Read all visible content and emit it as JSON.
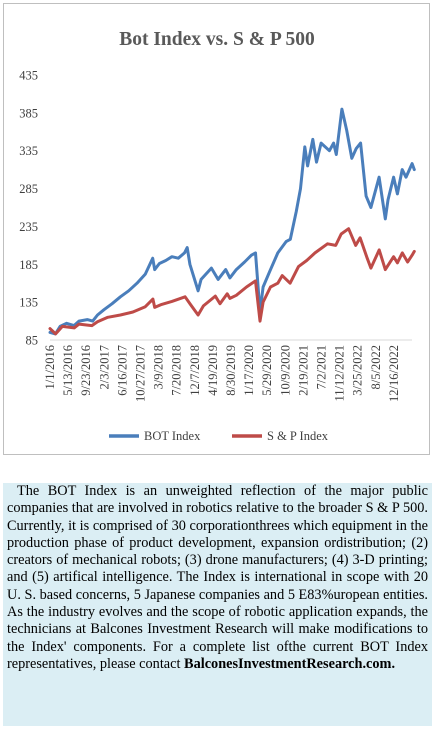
{
  "chart_data": {
    "type": "line",
    "title": "Bot Index vs. S & P 500",
    "xlabel": "",
    "ylabel": "",
    "ylim": [
      85,
      435
    ],
    "yticks": [
      85,
      135,
      185,
      235,
      285,
      335,
      385,
      435
    ],
    "grid": false,
    "legend_position": "bottom",
    "x_tick_labels": [
      "1/1/2016",
      "5/13/2016",
      "9/23/2016",
      "2/3/2017",
      "6/16/2017",
      "10/27/2017",
      "3/9/2018",
      "7/20/2018",
      "12/7/2018",
      "4/19/2019",
      "8/30/2019",
      "1/17/2020",
      "5/29/2020",
      "10/9/2020",
      "2/19/2021",
      "7/2/2021",
      "11/12/2021",
      "3/25/2022",
      "8/5/2022",
      "12/16/2022"
    ],
    "series": [
      {
        "name": "BOT Index",
        "color": "#4a7ebb",
        "points": [
          [
            "2016-01-01",
            95
          ],
          [
            "2016-02-10",
            93
          ],
          [
            "2016-03-15",
            103
          ],
          [
            "2016-05-01",
            107
          ],
          [
            "2016-06-25",
            104
          ],
          [
            "2016-08-01",
            110
          ],
          [
            "2016-10-01",
            112
          ],
          [
            "2016-11-10",
            110
          ],
          [
            "2016-12-15",
            118
          ],
          [
            "2017-02-01",
            125
          ],
          [
            "2017-04-01",
            133
          ],
          [
            "2017-06-01",
            142
          ],
          [
            "2017-08-01",
            150
          ],
          [
            "2017-10-01",
            160
          ],
          [
            "2017-12-01",
            172
          ],
          [
            "2018-01-25",
            193
          ],
          [
            "2018-02-08",
            178
          ],
          [
            "2018-03-15",
            186
          ],
          [
            "2018-05-01",
            190
          ],
          [
            "2018-06-15",
            195
          ],
          [
            "2018-08-01",
            193
          ],
          [
            "2018-09-15",
            200
          ],
          [
            "2018-10-05",
            207
          ],
          [
            "2018-10-25",
            185
          ],
          [
            "2018-12-24",
            150
          ],
          [
            "2019-01-15",
            165
          ],
          [
            "2019-04-01",
            180
          ],
          [
            "2019-05-20",
            165
          ],
          [
            "2019-07-15",
            178
          ],
          [
            "2019-08-15",
            167
          ],
          [
            "2019-10-01",
            178
          ],
          [
            "2019-12-01",
            188
          ],
          [
            "2020-01-20",
            197
          ],
          [
            "2020-02-19",
            200
          ],
          [
            "2020-03-23",
            122
          ],
          [
            "2020-04-15",
            155
          ],
          [
            "2020-06-01",
            175
          ],
          [
            "2020-08-01",
            200
          ],
          [
            "2020-10-01",
            215
          ],
          [
            "2020-11-01",
            218
          ],
          [
            "2020-12-15",
            255
          ],
          [
            "2021-01-15",
            285
          ],
          [
            "2021-02-15",
            340
          ],
          [
            "2021-03-08",
            315
          ],
          [
            "2021-04-15",
            350
          ],
          [
            "2021-05-12",
            320
          ],
          [
            "2021-06-15",
            345
          ],
          [
            "2021-08-15",
            335
          ],
          [
            "2021-09-15",
            345
          ],
          [
            "2021-10-05",
            330
          ],
          [
            "2021-11-15",
            390
          ],
          [
            "2021-12-20",
            362
          ],
          [
            "2022-01-27",
            325
          ],
          [
            "2022-03-01",
            338
          ],
          [
            "2022-04-01",
            345
          ],
          [
            "2022-05-12",
            275
          ],
          [
            "2022-06-16",
            260
          ],
          [
            "2022-08-15",
            300
          ],
          [
            "2022-09-30",
            245
          ],
          [
            "2022-10-20",
            270
          ],
          [
            "2022-11-30",
            300
          ],
          [
            "2022-12-28",
            278
          ],
          [
            "2023-02-01",
            310
          ],
          [
            "2023-03-01",
            300
          ],
          [
            "2023-04-15",
            318
          ],
          [
            "2023-05-01",
            310
          ]
        ]
      },
      {
        "name": "S & P Index",
        "color": "#be4b48",
        "points": [
          [
            "2016-01-01",
            100
          ],
          [
            "2016-02-11",
            93
          ],
          [
            "2016-04-01",
            103
          ],
          [
            "2016-06-27",
            101
          ],
          [
            "2016-08-01",
            106
          ],
          [
            "2016-11-04",
            104
          ],
          [
            "2016-12-15",
            109
          ],
          [
            "2017-03-01",
            115
          ],
          [
            "2017-06-01",
            118
          ],
          [
            "2017-09-01",
            122
          ],
          [
            "2017-12-01",
            129
          ],
          [
            "2018-01-26",
            139
          ],
          [
            "2018-02-08",
            128
          ],
          [
            "2018-04-01",
            132
          ],
          [
            "2018-06-15",
            136
          ],
          [
            "2018-09-20",
            142
          ],
          [
            "2018-10-29",
            132
          ],
          [
            "2018-12-24",
            118
          ],
          [
            "2019-02-01",
            130
          ],
          [
            "2019-04-30",
            143
          ],
          [
            "2019-06-03",
            133
          ],
          [
            "2019-07-26",
            146
          ],
          [
            "2019-08-15",
            140
          ],
          [
            "2019-10-01",
            144
          ],
          [
            "2019-12-15",
            155
          ],
          [
            "2020-02-19",
            163
          ],
          [
            "2020-03-23",
            110
          ],
          [
            "2020-04-15",
            135
          ],
          [
            "2020-06-08",
            155
          ],
          [
            "2020-08-01",
            160
          ],
          [
            "2020-09-02",
            170
          ],
          [
            "2020-10-30",
            160
          ],
          [
            "2020-12-31",
            182
          ],
          [
            "2021-03-01",
            190
          ],
          [
            "2021-05-01",
            200
          ],
          [
            "2021-08-01",
            212
          ],
          [
            "2021-09-30",
            210
          ],
          [
            "2021-11-10",
            225
          ],
          [
            "2022-01-03",
            232
          ],
          [
            "2022-02-24",
            210
          ],
          [
            "2022-03-29",
            220
          ],
          [
            "2022-05-20",
            193
          ],
          [
            "2022-06-16",
            180
          ],
          [
            "2022-08-16",
            204
          ],
          [
            "2022-09-30",
            178
          ],
          [
            "2022-11-30",
            195
          ],
          [
            "2022-12-28",
            187
          ],
          [
            "2023-02-02",
            200
          ],
          [
            "2023-03-13",
            188
          ],
          [
            "2023-04-15",
            197
          ],
          [
            "2023-05-01",
            202
          ]
        ]
      }
    ]
  },
  "caption": {
    "text": "The BOT Index is an unweighted reflection of the major public companies that are involved in robotics relative to the broader S & P 500. Currently, it is comprised of 30 corporationthrees which equipment in the production phase of product development, expansion ordistribution; (2) creators of mechanical robots; (3) drone manufacturers; (4) 3-D printing; and (5) artifical intelligence. The Index is international in scope with 20 U. S. based concerns, 5 Japanese companies and 5 E83%uropean entities. As the industry evolves and the scope of robotic application expands, the technicians at Balcones Investment Research will make modifications to the Index' components. For a  complete list ofthe current BOT Index representatives, please contact",
    "link": "BalconesInvestmentResearch.com."
  }
}
